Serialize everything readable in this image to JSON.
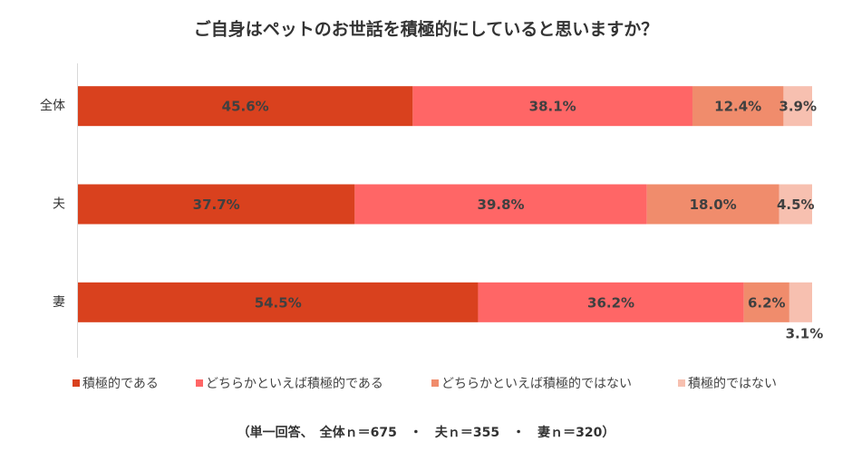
{
  "chart_data": {
    "type": "stacked-bar",
    "orientation": "horizontal",
    "title": "ご自身はペットのお世話を積極的にしていると思いますか？",
    "note": "（単一回答、　全体ｎ＝675　・　夫ｎ＝355　・　妻ｎ＝320）",
    "categories": [
      "全体",
      "夫",
      "妻"
    ],
    "xlim": [
      0,
      100
    ],
    "series": [
      {
        "name": "積極的である",
        "color": "#d9411e",
        "values": [
          45.6,
          37.7,
          54.5
        ],
        "value_labels": [
          "45.6%",
          "37.7%",
          "54.5%"
        ]
      },
      {
        "name": "どちらかといえば積極的である",
        "color": "#ff6666",
        "values": [
          38.1,
          39.8,
          36.2
        ],
        "value_labels": [
          "38.1%",
          "39.8%",
          "36.2%"
        ]
      },
      {
        "name": "どちらかといえば積極的ではない",
        "color": "#f08c6c",
        "values": [
          12.4,
          18,
          6.2
        ],
        "value_labels": [
          "12.4%",
          "18.0%",
          "6.2%"
        ]
      },
      {
        "name": "積極的ではない",
        "color": "#f7c0b0",
        "values": [
          3.9,
          4.5,
          3.1
        ],
        "value_labels": [
          "3.9%",
          "4.5%",
          "3.1%"
        ]
      }
    ]
  }
}
